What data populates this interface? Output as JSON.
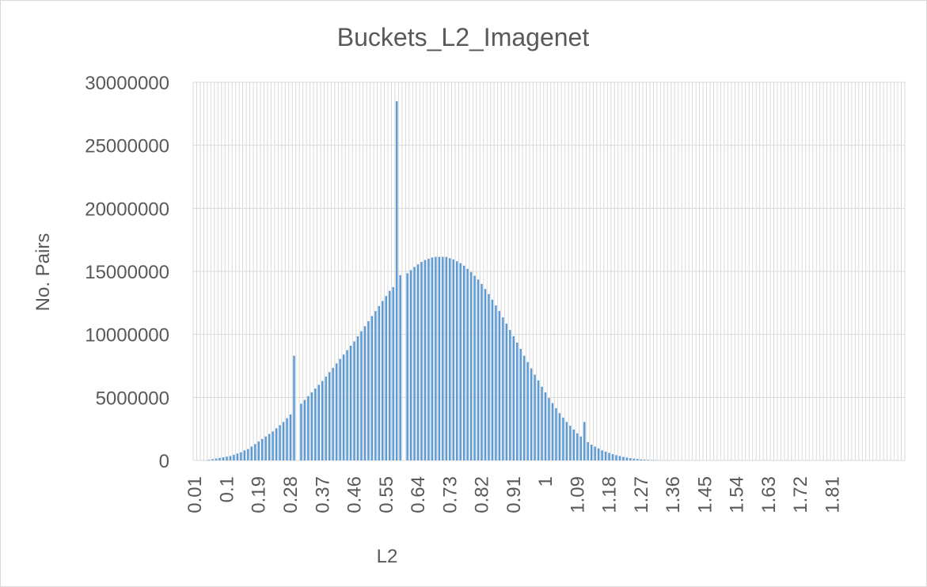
{
  "chart_data": {
    "type": "bar",
    "title": "Buckets_L2_Imagenet",
    "xlabel": "L2",
    "ylabel": "No. Pairs",
    "ylim": [
      0,
      30000000
    ],
    "yticks": [
      "0",
      "5000000",
      "10000000",
      "15000000",
      "20000000",
      "25000000",
      "30000000"
    ],
    "xtick_labels": [
      "0.01",
      "0.1",
      "0.19",
      "0.28",
      "0.37",
      "0.46",
      "0.55",
      "0.64",
      "0.73",
      "0.82",
      "0.91",
      "1",
      "1.09",
      "1.18",
      "1.27",
      "1.36",
      "1.45",
      "1.54",
      "1.63",
      "1.72",
      "1.81"
    ],
    "x_start": 0.01,
    "x_step": 0.01,
    "grid": true,
    "bar_color": "#5b9bd5",
    "grid_color": "#d9d9d9",
    "values": [
      0,
      0,
      0,
      0,
      50000,
      100000,
      150000,
      200000,
      250000,
      300000,
      350000,
      450000,
      550000,
      650000,
      800000,
      900000,
      1100000,
      1300000,
      1500000,
      1700000,
      1900000,
      2100000,
      2300000,
      2550000,
      2800000,
      3050000,
      3350000,
      3650000,
      8300000,
      0,
      4500000,
      4800000,
      5100000,
      5400000,
      5700000,
      6000000,
      6300000,
      6650000,
      7000000,
      7350000,
      7700000,
      8050000,
      8400000,
      8750000,
      9100000,
      9450000,
      9850000,
      10250000,
      10650000,
      11050000,
      11450000,
      11850000,
      12250000,
      12650000,
      13050000,
      13450000,
      13750000,
      28500000,
      14700000,
      0,
      14850000,
      15100000,
      15350000,
      15550000,
      15750000,
      15900000,
      16000000,
      16100000,
      16150000,
      16150000,
      16150000,
      16150000,
      16050000,
      15950000,
      15800000,
      15650000,
      15450000,
      15200000,
      14950000,
      14650000,
      14350000,
      14000000,
      13600000,
      13200000,
      12750000,
      12300000,
      11850000,
      11350000,
      10850000,
      10350000,
      9850000,
      9350000,
      8850000,
      8300000,
      7800000,
      7300000,
      6800000,
      6350000,
      5850000,
      5400000,
      4950000,
      4550000,
      4150000,
      3750000,
      3400000,
      3050000,
      2750000,
      2450000,
      2150000,
      1900000,
      3050000,
      1450000,
      1250000,
      1100000,
      950000,
      800000,
      700000,
      600000,
      500000,
      420000,
      350000,
      280000,
      230000,
      180000,
      140000,
      110000,
      80000,
      60000,
      45000,
      30000,
      20000,
      15000,
      10000,
      8000,
      5000,
      3000,
      2000,
      1000,
      0,
      0,
      0,
      0,
      0,
      0,
      0,
      0,
      0,
      0,
      0,
      0,
      0,
      0,
      0,
      0,
      0,
      0,
      0,
      0,
      0,
      0,
      0,
      0,
      0,
      0,
      0,
      0,
      0,
      0,
      0,
      0,
      0,
      0,
      0,
      0,
      0,
      0,
      0,
      0,
      0,
      0,
      0,
      0,
      0,
      0,
      0,
      0,
      0,
      0,
      0,
      0,
      0,
      0,
      0,
      0,
      0,
      0,
      0,
      0,
      0,
      0,
      0
    ]
  }
}
